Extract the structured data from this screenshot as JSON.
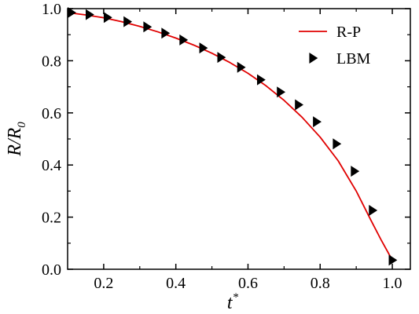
{
  "chart_data": {
    "type": "line",
    "xlim": [
      0.1,
      1.05
    ],
    "ylim": [
      0.0,
      1.0
    ],
    "x_ticks": [
      "0.2",
      "0.4",
      "0.6",
      "0.8",
      "1.0"
    ],
    "y_ticks": [
      "0.0",
      "0.2",
      "0.4",
      "0.6",
      "0.8",
      "1.0"
    ],
    "xlabel": {
      "base": "t",
      "sup": "*"
    },
    "ylabel": {
      "main": "R/R",
      "sub": "0"
    },
    "legend_position": "top-right",
    "grid": false,
    "series": [
      {
        "name": "R-P",
        "kind": "line",
        "color": "#e00000",
        "x": [
          0.1,
          0.15,
          0.2,
          0.25,
          0.3,
          0.35,
          0.4,
          0.45,
          0.5,
          0.55,
          0.6,
          0.65,
          0.7,
          0.75,
          0.8,
          0.85,
          0.9,
          0.94,
          0.97,
          0.99,
          1.0
        ],
        "y": [
          0.985,
          0.976,
          0.965,
          0.95,
          0.932,
          0.911,
          0.887,
          0.86,
          0.829,
          0.793,
          0.752,
          0.704,
          0.648,
          0.583,
          0.507,
          0.416,
          0.3,
          0.19,
          0.11,
          0.06,
          0.035
        ]
      },
      {
        "name": "LBM",
        "kind": "marker",
        "marker": "right-triangle",
        "color": "#000000",
        "x": [
          0.11,
          0.16,
          0.21,
          0.265,
          0.32,
          0.37,
          0.42,
          0.475,
          0.525,
          0.58,
          0.635,
          0.69,
          0.74,
          0.79,
          0.845,
          0.895,
          0.945,
          1.0
        ],
        "y": [
          0.985,
          0.977,
          0.966,
          0.95,
          0.93,
          0.906,
          0.88,
          0.849,
          0.813,
          0.775,
          0.727,
          0.68,
          0.631,
          0.566,
          0.481,
          0.376,
          0.226,
          0.035
        ]
      }
    ]
  }
}
